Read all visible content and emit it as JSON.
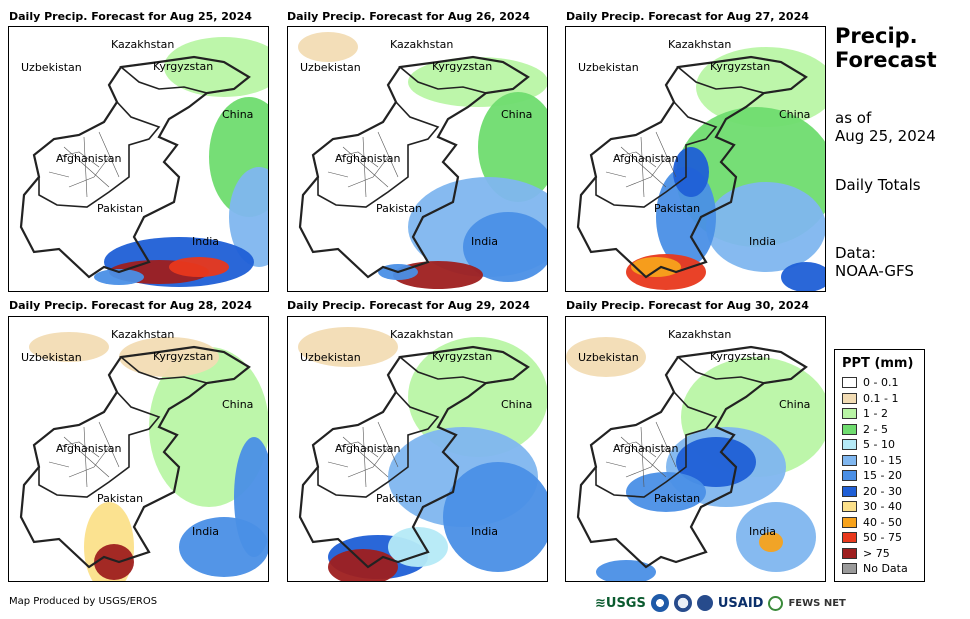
{
  "panels": [
    {
      "title": "Daily Precip. Forecast for Aug 25, 2024"
    },
    {
      "title": "Daily Precip. Forecast for Aug 26, 2024"
    },
    {
      "title": "Daily Precip. Forecast for Aug 27, 2024"
    },
    {
      "title": "Daily Precip. Forecast for Aug 28, 2024"
    },
    {
      "title": "Daily Precip. Forecast for Aug 29, 2024"
    },
    {
      "title": "Daily Precip. Forecast for Aug 30, 2024"
    }
  ],
  "map_labels": {
    "kazakhstan": "Kazakhstan",
    "uzbekistan": "Uzbekistan",
    "kyrgyzstan": "Kyrgyzstan",
    "china": "China",
    "afghanistan": "Afghanistan",
    "pakistan": "Pakistan",
    "india": "India"
  },
  "side": {
    "title_line1": "Precip.",
    "title_line2": "Forecast",
    "asof_line1": "as of",
    "asof_line2": "Aug 25, 2024",
    "totals": "Daily Totals",
    "data_line1": "Data:",
    "data_line2": "NOAA-GFS"
  },
  "legend": {
    "title": "PPT (mm)",
    "items": [
      {
        "label": "0 - 0.1",
        "color": "#ffffff"
      },
      {
        "label": "0.1 - 1",
        "color": "#f2dcb4"
      },
      {
        "label": "1 - 2",
        "color": "#b9f5a5"
      },
      {
        "label": "2 - 5",
        "color": "#6fdc6f"
      },
      {
        "label": "5 - 10",
        "color": "#b5eaf7"
      },
      {
        "label": "10 - 15",
        "color": "#7fb6ef"
      },
      {
        "label": "15 - 20",
        "color": "#4a8fe6"
      },
      {
        "label": "20 - 30",
        "color": "#1f5fd6"
      },
      {
        "label": "30 - 40",
        "color": "#fbe08a"
      },
      {
        "label": "40 - 50",
        "color": "#f7a21b"
      },
      {
        "label": "50 - 75",
        "color": "#e8381c"
      },
      {
        "label": "> 75",
        "color": "#9e1f1f"
      },
      {
        "label": "No Data",
        "color": "#9a9a9a"
      }
    ]
  },
  "footer": {
    "credit": "Map Produced by USGS/EROS",
    "usgs": "≋USGS",
    "usaid": "USAID",
    "fews": "FEWS NET"
  }
}
